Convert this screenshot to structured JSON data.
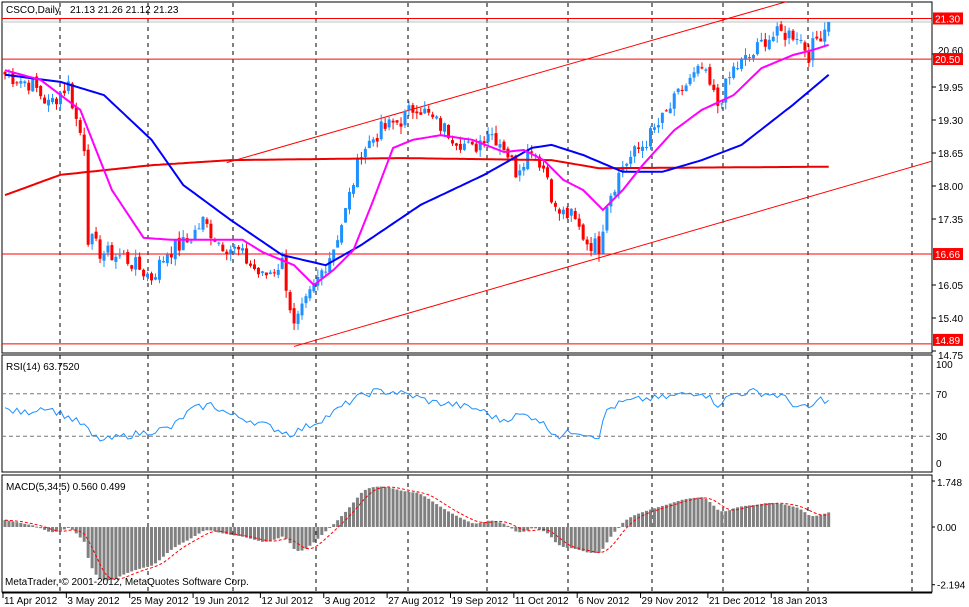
{
  "header": {
    "symbol_label": "CSCO,Daily",
    "ohlc": "21.13 21.26 21.12 21.23"
  },
  "footer": {
    "copyright": "MetaTrader, © 2001-2012, MetaQuotes Software Corp."
  },
  "colors": {
    "bull": "#1e90ff",
    "bear": "#ff0000",
    "ma_fast": "#ff00ff",
    "ma_mid": "#0000ff",
    "ma_slow": "#ee0000",
    "levels": "#ff0000",
    "rsi": "#1e90ff",
    "macd_hist": "#808080",
    "macd_signal": "#ff0000"
  },
  "chart_data": [
    {
      "type": "candlestick",
      "title": "CSCO,Daily",
      "ylim": [
        14.75,
        21.5
      ],
      "y_ticks": [
        "20.60",
        "19.95",
        "19.30",
        "18.65",
        "18.00",
        "17.35",
        "16.05",
        "15.40",
        "14.75"
      ],
      "x_ticks": [
        {
          "bar": 0,
          "label": "11 Apr 2012"
        },
        {
          "bar": 16,
          "label": "3 May 2012"
        },
        {
          "bar": 32,
          "label": "25 May 2012"
        },
        {
          "bar": 48,
          "label": "19 Jun 2012"
        },
        {
          "bar": 65,
          "label": "12 Jul 2012"
        },
        {
          "bar": 81,
          "label": "3 Aug 2012"
        },
        {
          "bar": 97,
          "label": "27 Aug 2012"
        },
        {
          "bar": 113,
          "label": "19 Sep 2012"
        },
        {
          "bar": 129,
          "label": "11 Oct 2012"
        },
        {
          "bar": 145,
          "label": "6 Nov 2012"
        },
        {
          "bar": 161,
          "label": "29 Nov 2012"
        },
        {
          "bar": 178,
          "label": "21 Dec 2012"
        },
        {
          "bar": 194,
          "label": "18 Jan 2013"
        }
      ],
      "close_keypoints": [
        [
          0,
          20.2
        ],
        [
          7,
          20.0
        ],
        [
          11,
          19.6
        ],
        [
          16,
          20.0
        ],
        [
          18,
          19.3
        ],
        [
          20,
          18.8
        ],
        [
          21,
          17.0
        ],
        [
          24,
          16.7
        ],
        [
          30,
          16.6
        ],
        [
          37,
          16.2
        ],
        [
          41,
          16.7
        ],
        [
          46,
          16.9
        ],
        [
          50,
          17.3
        ],
        [
          54,
          16.9
        ],
        [
          59,
          16.7
        ],
        [
          65,
          16.2
        ],
        [
          70,
          16.5
        ],
        [
          73,
          15.2
        ],
        [
          78,
          16.0
        ],
        [
          83,
          16.8
        ],
        [
          86,
          17.5
        ],
        [
          90,
          18.7
        ],
        [
          95,
          19.1
        ],
        [
          100,
          19.3
        ],
        [
          104,
          19.6
        ],
        [
          108,
          19.3
        ],
        [
          113,
          19.0
        ],
        [
          118,
          18.7
        ],
        [
          122,
          19.1
        ],
        [
          126,
          18.8
        ],
        [
          129,
          18.3
        ],
        [
          133,
          18.8
        ],
        [
          137,
          18.2
        ],
        [
          139,
          17.5
        ],
        [
          143,
          17.4
        ],
        [
          147,
          16.9
        ],
        [
          150,
          16.8
        ],
        [
          152,
          17.7
        ],
        [
          156,
          18.4
        ],
        [
          161,
          18.8
        ],
        [
          166,
          19.3
        ],
        [
          171,
          19.9
        ],
        [
          176,
          20.3
        ],
        [
          180,
          19.6
        ],
        [
          184,
          20.3
        ],
        [
          189,
          20.6
        ],
        [
          192,
          20.9
        ],
        [
          196,
          21.0
        ],
        [
          200,
          21.0
        ],
        [
          203,
          20.6
        ],
        [
          205,
          20.9
        ],
        [
          208,
          21.23
        ]
      ],
      "ma_fast": [
        [
          0,
          20.28
        ],
        [
          9,
          20.09
        ],
        [
          19,
          19.5
        ],
        [
          27,
          17.92
        ],
        [
          35,
          16.98
        ],
        [
          42,
          16.94
        ],
        [
          50,
          16.94
        ],
        [
          60,
          16.94
        ],
        [
          65,
          16.7
        ],
        [
          73,
          16.44
        ],
        [
          78,
          16.05
        ],
        [
          83,
          16.35
        ],
        [
          88,
          16.74
        ],
        [
          93,
          17.72
        ],
        [
          98,
          18.75
        ],
        [
          103,
          18.91
        ],
        [
          110,
          19.0
        ],
        [
          118,
          18.91
        ],
        [
          126,
          18.67
        ],
        [
          131,
          18.71
        ],
        [
          136,
          18.51
        ],
        [
          141,
          18.12
        ],
        [
          146,
          17.92
        ],
        [
          151,
          17.53
        ],
        [
          156,
          17.92
        ],
        [
          161,
          18.41
        ],
        [
          169,
          19.1
        ],
        [
          176,
          19.5
        ],
        [
          184,
          19.79
        ],
        [
          191,
          20.32
        ],
        [
          199,
          20.58
        ],
        [
          204,
          20.68
        ],
        [
          208,
          20.78
        ]
      ],
      "ma_mid": [
        [
          0,
          20.19
        ],
        [
          14,
          20.05
        ],
        [
          25,
          19.79
        ],
        [
          37,
          18.91
        ],
        [
          45,
          18.02
        ],
        [
          57,
          17.33
        ],
        [
          70,
          16.64
        ],
        [
          81,
          16.44
        ],
        [
          90,
          16.84
        ],
        [
          105,
          17.63
        ],
        [
          121,
          18.22
        ],
        [
          133,
          18.75
        ],
        [
          138,
          18.81
        ],
        [
          146,
          18.61
        ],
        [
          156,
          18.28
        ],
        [
          166,
          18.28
        ],
        [
          176,
          18.51
        ],
        [
          186,
          18.81
        ],
        [
          199,
          19.6
        ],
        [
          208,
          20.19
        ]
      ],
      "ma_slow": [
        [
          0,
          17.82
        ],
        [
          14,
          18.22
        ],
        [
          37,
          18.41
        ],
        [
          57,
          18.51
        ],
        [
          100,
          18.55
        ],
        [
          138,
          18.51
        ],
        [
          150,
          18.35
        ],
        [
          208,
          18.38
        ]
      ],
      "channel_upper": [
        [
          56,
          18.46
        ],
        [
          196,
          21.6
        ]
      ],
      "channel_lower": [
        [
          73,
          14.84
        ],
        [
          235,
          18.51
        ]
      ],
      "levels": [
        "21.30",
        "20.50",
        "16.66",
        "14.89"
      ],
      "last_price": 21.23
    },
    {
      "type": "line",
      "title": "RSI(14) 63.7520",
      "ylim": [
        0,
        100
      ],
      "y_ticks": [
        "100",
        "70",
        "30",
        "0"
      ],
      "keypoints": [
        [
          0,
          55
        ],
        [
          5,
          52
        ],
        [
          10,
          58
        ],
        [
          15,
          50
        ],
        [
          20,
          40
        ],
        [
          22,
          30
        ],
        [
          25,
          26
        ],
        [
          30,
          30
        ],
        [
          36,
          34
        ],
        [
          42,
          38
        ],
        [
          47,
          55
        ],
        [
          52,
          60
        ],
        [
          57,
          50
        ],
        [
          62,
          45
        ],
        [
          66,
          40
        ],
        [
          72,
          32
        ],
        [
          78,
          42
        ],
        [
          82,
          50
        ],
        [
          88,
          65
        ],
        [
          93,
          72
        ],
        [
          98,
          72
        ],
        [
          103,
          68
        ],
        [
          108,
          62
        ],
        [
          113,
          60
        ],
        [
          120,
          55
        ],
        [
          125,
          45
        ],
        [
          130,
          50
        ],
        [
          134,
          48
        ],
        [
          137,
          38
        ],
        [
          140,
          30
        ],
        [
          144,
          35
        ],
        [
          150,
          30
        ],
        [
          152,
          55
        ],
        [
          156,
          62
        ],
        [
          161,
          65
        ],
        [
          166,
          66
        ],
        [
          172,
          70
        ],
        [
          176,
          72
        ],
        [
          180,
          60
        ],
        [
          184,
          70
        ],
        [
          189,
          72
        ],
        [
          196,
          68
        ],
        [
          200,
          58
        ],
        [
          203,
          56
        ],
        [
          206,
          65
        ],
        [
          208,
          63.75
        ]
      ]
    },
    {
      "type": "bar",
      "title": "MACD(5,34,5) 0.560 0.499",
      "ylim": [
        -2.194,
        1.748
      ],
      "y_ticks": [
        "1.748",
        "0.00",
        "-2.194"
      ],
      "macd_value": 0.56,
      "signal_value": 0.499
    }
  ]
}
